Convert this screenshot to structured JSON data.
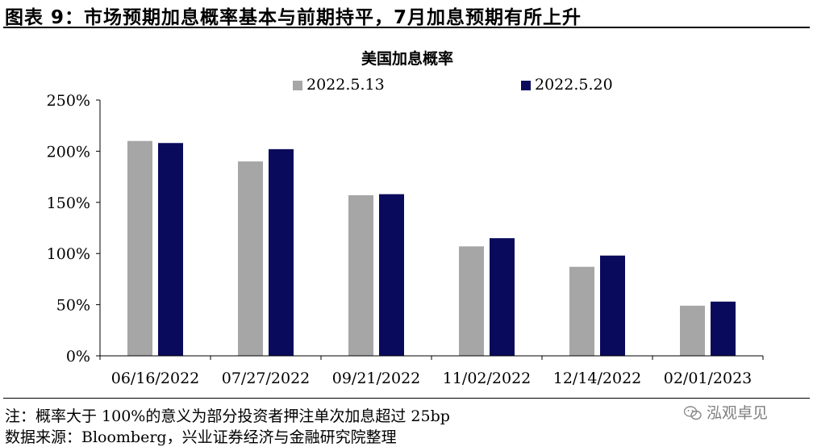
{
  "figure": {
    "title": "图表 9：市场预期加息概率基本与前期持平，7月加息预期有所上升"
  },
  "notes": {
    "note": "注：概率大于 100%的意义为部分投资者押注单次加息超过 25bp",
    "source": "数据来源：Bloomberg，兴业证券经济与金融研究院整理"
  },
  "watermark": {
    "text": "泓观卓见",
    "icon": "wechat-icon"
  },
  "chart_data": {
    "type": "bar",
    "title": "美国加息概率",
    "xlabel": "",
    "ylabel": "",
    "categories": [
      "06/16/2022",
      "07/27/2022",
      "09/21/2022",
      "11/02/2022",
      "12/14/2022",
      "02/01/2023"
    ],
    "series": [
      {
        "name": "2022.5.13",
        "color": "#a6a6a6",
        "values": [
          210,
          190,
          157,
          107,
          87,
          49
        ]
      },
      {
        "name": "2022.5.20",
        "color": "#0a0a5c",
        "values": [
          208,
          202,
          158,
          115,
          98,
          53
        ]
      }
    ],
    "ylim": [
      0,
      250
    ],
    "yticks": [
      0,
      50,
      100,
      150,
      200,
      250
    ],
    "ytick_labels": [
      "0%",
      "50%",
      "100%",
      "150%",
      "200%",
      "250%"
    ],
    "grid": false,
    "legend": "top-center"
  }
}
